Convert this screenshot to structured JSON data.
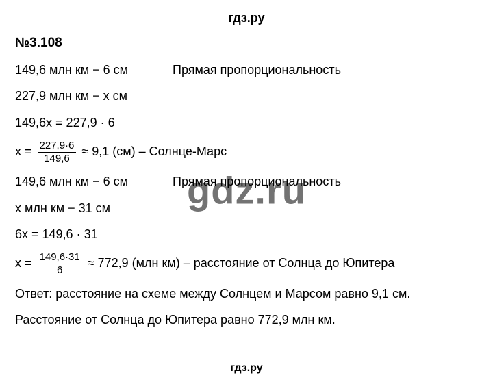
{
  "header": "гдз.ру",
  "title": "№3.108",
  "part1": {
    "given1_left": "149,6 млн км − 6 см",
    "given1_right": "Прямая пропорциональность",
    "given2_left": "227,9 млн км − x см",
    "eq": "149,6x = 227,9 · 6",
    "frac_num": "227,9·6",
    "frac_den": "149,6",
    "result": " ≈ 9,1 (см) – Солнце-Марс"
  },
  "part2": {
    "given1_left": "149,6 млн км − 6 см",
    "given1_right": "Прямая пропорциональность",
    "given2_left": "x млн км − 31 см",
    "eq": "6x = 149,6 · 31",
    "frac_num": "149,6·31",
    "frac_den": "6",
    "result": " ≈ 772,9 (млн км) – расстояние от Солнца до Юпитера"
  },
  "answer1": "Ответ: расстояние на схеме между Солнцем и Марсом равно 9,1 см.",
  "answer2": "Расстояние от Солнца до Юпитера равно 772,9 млн км.",
  "footer": "гдз.ру",
  "watermark": "gdz.ru",
  "x_equals": "x = "
}
